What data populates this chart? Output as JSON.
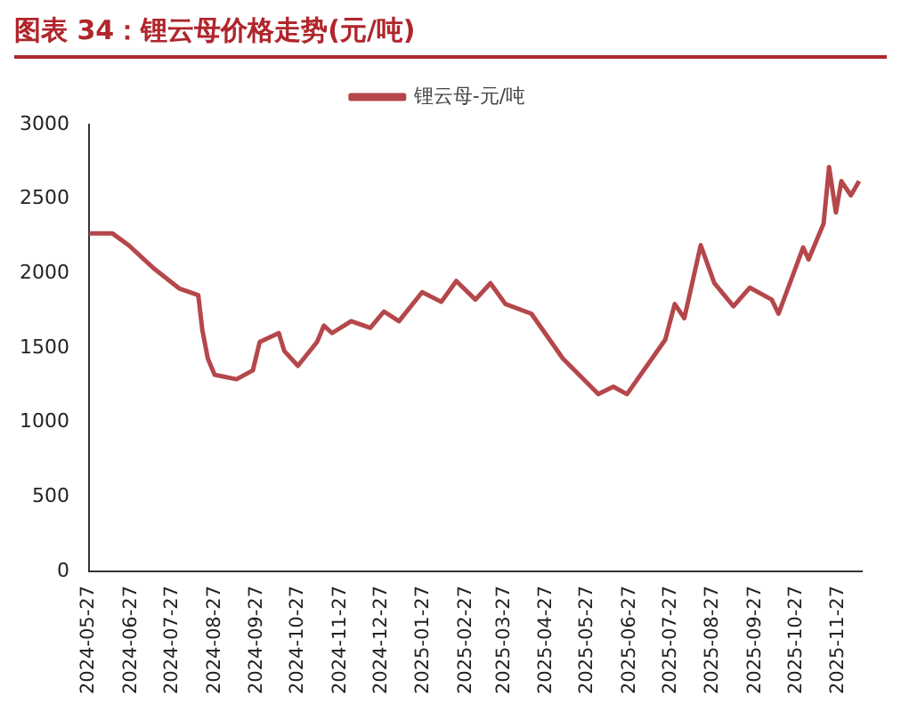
{
  "chart_data": {
    "type": "line",
    "title": "图表 34：锂云母价格走势(元/吨)",
    "x": [
      "2024-05-27",
      "2024-06-13",
      "2024-06-25",
      "2024-07-14",
      "2024-08-01",
      "2024-08-15",
      "2024-08-18",
      "2024-08-22",
      "2024-08-27",
      "2024-09-12",
      "2024-09-24",
      "2024-09-29",
      "2024-10-13",
      "2024-10-17",
      "2024-10-27",
      "2024-11-10",
      "2024-11-15",
      "2024-11-21",
      "2024-12-05",
      "2024-12-19",
      "2024-12-29",
      "2025-01-09",
      "2025-01-26",
      "2025-02-09",
      "2025-02-20",
      "2025-03-06",
      "2025-03-17",
      "2025-03-28",
      "2025-04-16",
      "2025-05-09",
      "2025-06-04",
      "2025-06-15",
      "2025-06-25",
      "2025-07-23",
      "2025-07-30",
      "2025-08-06",
      "2025-08-18",
      "2025-08-28",
      "2025-09-11",
      "2025-09-23",
      "2025-10-09",
      "2025-10-14",
      "2025-11-01",
      "2025-11-05",
      "2025-11-16",
      "2025-11-20",
      "2025-11-25",
      "2025-11-29",
      "2025-12-06",
      "2025-12-12"
    ],
    "series": [
      {
        "name": "锂云母-元/吨",
        "color": "#b5474a",
        "values": [
          2270,
          2270,
          2190,
          2030,
          1900,
          1855,
          1620,
          1430,
          1320,
          1290,
          1350,
          1540,
          1600,
          1480,
          1380,
          1540,
          1650,
          1600,
          1680,
          1635,
          1745,
          1680,
          1875,
          1810,
          1950,
          1825,
          1935,
          1795,
          1730,
          1430,
          1190,
          1240,
          1190,
          1555,
          1795,
          1700,
          2190,
          1935,
          1780,
          1905,
          1825,
          1730,
          2175,
          2095,
          2335,
          2715,
          2410,
          2620,
          2525,
          2620
        ]
      }
    ],
    "xlim": [
      "2024-05-27",
      "2025-12-14"
    ],
    "xticks": [
      "2024-05-27",
      "2024-06-27",
      "2024-07-27",
      "2024-08-27",
      "2024-09-27",
      "2024-10-27",
      "2024-11-27",
      "2024-12-27",
      "2025-01-27",
      "2025-02-27",
      "2025-03-27",
      "2025-04-27",
      "2025-05-27",
      "2025-06-27",
      "2025-07-27",
      "2025-08-27",
      "2025-09-27",
      "2025-10-27",
      "2025-11-27"
    ],
    "ylim": [
      0,
      3000
    ],
    "yticks": [
      0,
      500,
      1000,
      1500,
      2000,
      2500,
      3000
    ],
    "grid": false,
    "legend": "top",
    "marker": "none",
    "line_style": "solid"
  }
}
